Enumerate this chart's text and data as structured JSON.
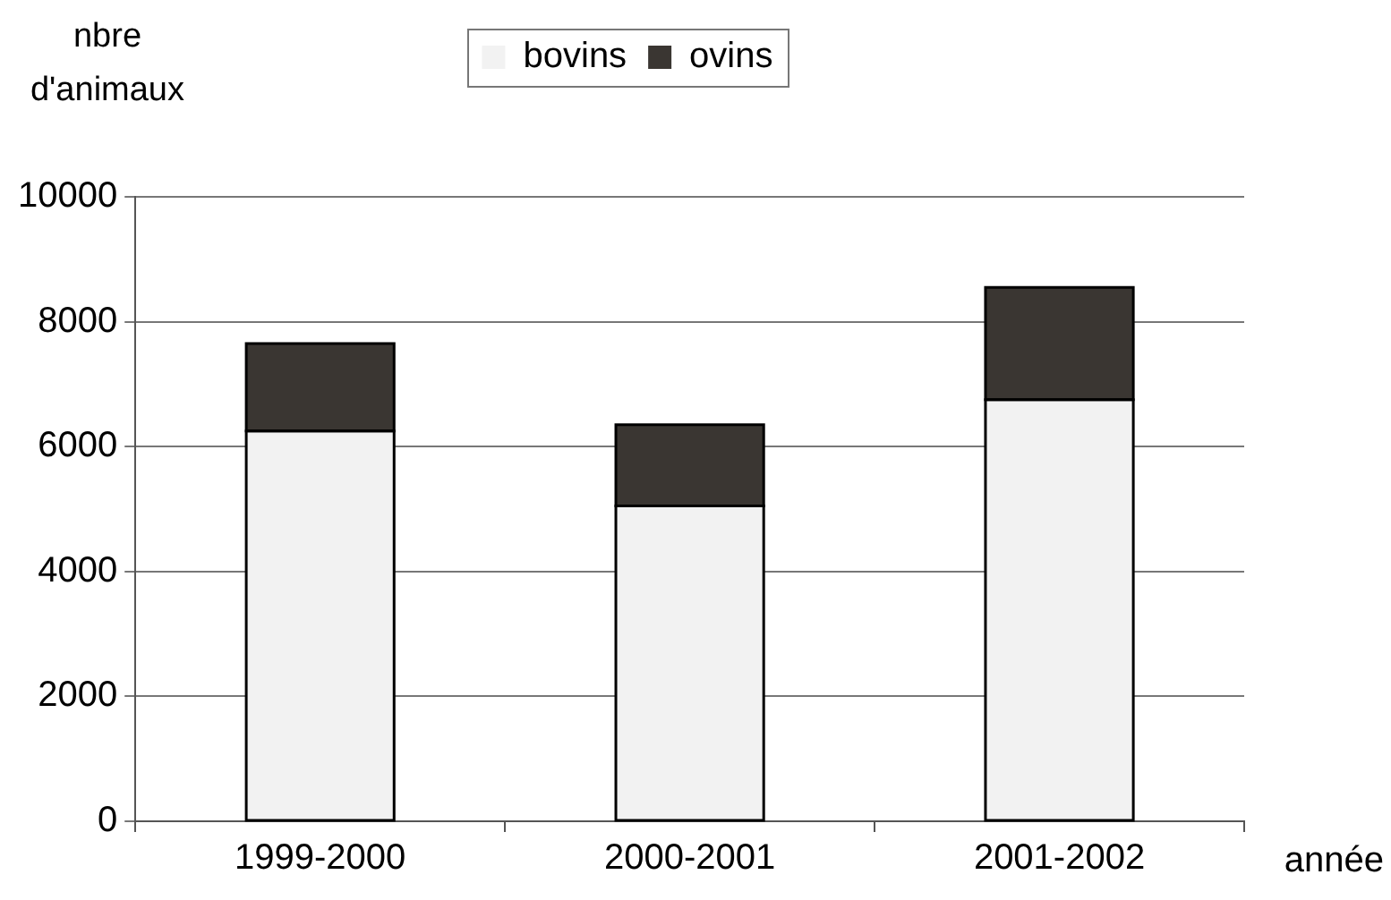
{
  "chart_data": {
    "type": "bar",
    "stacked": true,
    "ylabel": "nbre d'animaux",
    "xlabel": "année",
    "categories": [
      "1999-2000",
      "2000-2001",
      "2001-2002"
    ],
    "series": [
      {
        "name": "bovins",
        "color": "#f2f2f2",
        "values": [
          6250,
          5050,
          6750
        ]
      },
      {
        "name": "ovins",
        "color": "#3a3632",
        "values": [
          1400,
          1300,
          1800
        ]
      }
    ],
    "ylim": [
      0,
      10000
    ],
    "yticks": [
      0,
      2000,
      4000,
      6000,
      8000,
      10000
    ],
    "grid": "y",
    "legend": "top"
  }
}
